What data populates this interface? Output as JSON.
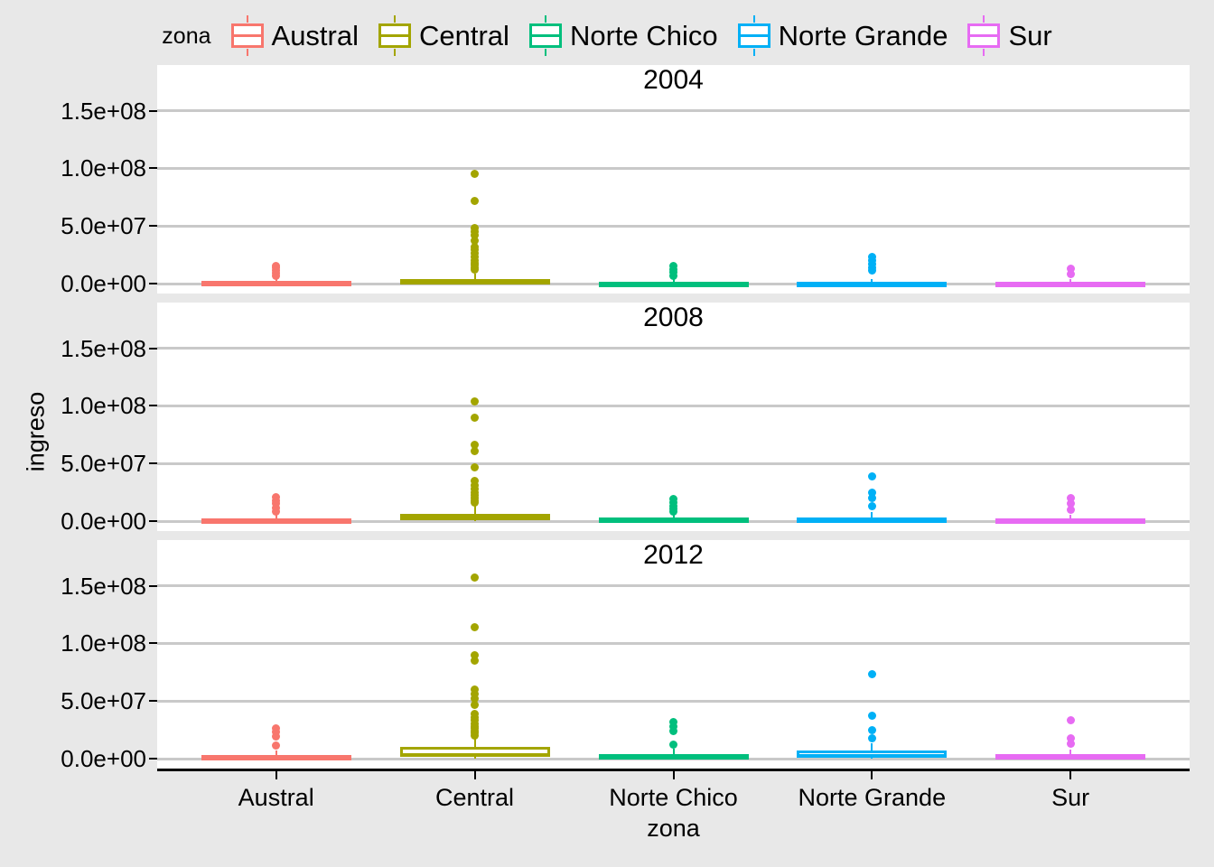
{
  "colors": {
    "outer_background": "#E8E8E8",
    "panel_background": "#FFFFFF",
    "gridline": "#C9C9C9",
    "axis": "#000000",
    "text": "#000000",
    "zones": {
      "Austral": "#F8766D",
      "Central": "#A3A500",
      "Norte Chico": "#00BF7D",
      "Norte Grande": "#00B0F6",
      "Sur": "#E76BF3"
    }
  },
  "legend": {
    "title": "zona",
    "items": [
      {
        "label": "Austral",
        "color": "#F8766D",
        "icon": "boxplot-key-icon"
      },
      {
        "label": "Central",
        "color": "#A3A500",
        "icon": "boxplot-key-icon"
      },
      {
        "label": "Norte Chico",
        "color": "#00BF7D",
        "icon": "boxplot-key-icon"
      },
      {
        "label": "Norte Grande",
        "color": "#00B0F6",
        "icon": "boxplot-key-icon"
      },
      {
        "label": "Sur",
        "color": "#E76BF3",
        "icon": "boxplot-key-icon"
      }
    ]
  },
  "axes": {
    "y_title": "ingreso",
    "x_title": "zona",
    "y_ticks": [
      {
        "label": "1.5e+08",
        "value": 150000000
      },
      {
        "label": "1.0e+08",
        "value": 100000000
      },
      {
        "label": "5.0e+07",
        "value": 50000000
      },
      {
        "label": "0.0e+00",
        "value": 0
      }
    ],
    "x_ticks": [
      "Austral",
      "Central",
      "Norte Chico",
      "Norte Grande",
      "Sur"
    ]
  },
  "chart_data": {
    "type": "boxplot",
    "title": "",
    "xlabel": "zona",
    "ylabel": "ingreso",
    "facet_variable": "year",
    "categories": [
      "Austral",
      "Central",
      "Norte Chico",
      "Norte Grande",
      "Sur"
    ],
    "ylim": [
      -8000000,
      165000000
    ],
    "grid": "horizontal-major-only",
    "legend_position": "top",
    "facets": [
      {
        "label": "2004",
        "boxes": [
          {
            "zone": "Austral",
            "color": "#F8766D",
            "whisker_low": 0,
            "q1": 300000,
            "median": 900000,
            "q3": 2000000,
            "whisker_high": 4500000,
            "outliers": [
              7000000,
              9000000,
              11000000,
              13500000,
              15500000
            ]
          },
          {
            "zone": "Central",
            "color": "#A3A500",
            "whisker_low": 0,
            "q1": 500000,
            "median": 1500000,
            "q3": 4000000,
            "whisker_high": 9000000,
            "outliers": [
              12000000,
              14000000,
              16000000,
              18000000,
              20000000,
              23000000,
              26000000,
              29000000,
              32000000,
              37000000,
              42000000,
              45000000,
              48000000,
              72000000,
              95000000
            ]
          },
          {
            "zone": "Norte Chico",
            "color": "#00BF7D",
            "whisker_low": 0,
            "q1": 250000,
            "median": 700000,
            "q3": 1700000,
            "whisker_high": 4000000,
            "outliers": [
              7000000,
              9500000,
              12000000,
              15000000
            ]
          },
          {
            "zone": "Norte Grande",
            "color": "#00B0F6",
            "whisker_low": 0,
            "q1": 300000,
            "median": 800000,
            "q3": 1900000,
            "whisker_high": 4200000,
            "outliers": [
              11000000,
              14000000,
              17000000,
              20000000,
              23000000
            ]
          },
          {
            "zone": "Sur",
            "color": "#E76BF3",
            "whisker_low": 0,
            "q1": 250000,
            "median": 650000,
            "q3": 1600000,
            "whisker_high": 3600000,
            "outliers": [
              8500000,
              13000000
            ]
          }
        ]
      },
      {
        "label": "2008",
        "boxes": [
          {
            "zone": "Austral",
            "color": "#F8766D",
            "whisker_low": 0,
            "q1": 350000,
            "median": 1000000,
            "q3": 2400000,
            "whisker_high": 5200000,
            "outliers": [
              8000000,
              11500000,
              15000000,
              18000000,
              21000000
            ]
          },
          {
            "zone": "Central",
            "color": "#A3A500",
            "whisker_low": 0,
            "q1": 700000,
            "median": 2000000,
            "q3": 6500000,
            "whisker_high": 14000000,
            "outliers": [
              16000000,
              18000000,
              20000000,
              22500000,
              25000000,
              28000000,
              31000000,
              35000000,
              47000000,
              61000000,
              66000000,
              90000000,
              104000000
            ]
          },
          {
            "zone": "Norte Chico",
            "color": "#00BF7D",
            "whisker_low": 0,
            "q1": 300000,
            "median": 900000,
            "q3": 2800000,
            "whisker_high": 6000000,
            "outliers": [
              8000000,
              10500000,
              13000000,
              16000000,
              19000000
            ]
          },
          {
            "zone": "Norte Grande",
            "color": "#00B0F6",
            "whisker_low": 0,
            "q1": 400000,
            "median": 1100000,
            "q3": 3500000,
            "whisker_high": 7500000,
            "outliers": [
              13000000,
              20000000,
              25000000,
              39000000
            ]
          },
          {
            "zone": "Sur",
            "color": "#E76BF3",
            "whisker_low": 0,
            "q1": 300000,
            "median": 850000,
            "q3": 2500000,
            "whisker_high": 5500000,
            "outliers": [
              10000000,
              15000000,
              20000000
            ]
          }
        ]
      },
      {
        "label": "2012",
        "boxes": [
          {
            "zone": "Austral",
            "color": "#F8766D",
            "whisker_low": 0,
            "q1": 450000,
            "median": 1300000,
            "q3": 3200000,
            "whisker_high": 7000000,
            "outliers": [
              11000000,
              19000000,
              23000000,
              26000000
            ]
          },
          {
            "zone": "Central",
            "color": "#A3A500",
            "whisker_low": 300000,
            "q1": 1500000,
            "median": 4000000,
            "q3": 10000000,
            "whisker_high": 18000000,
            "outliers": [
              20000000,
              22000000,
              24000000,
              26000000,
              28000000,
              30000000,
              33000000,
              36000000,
              39000000,
              47000000,
              52000000,
              56000000,
              60000000,
              85000000,
              90000000,
              114000000,
              157000000
            ]
          },
          {
            "zone": "Norte Chico",
            "color": "#00BF7D",
            "whisker_low": 0,
            "q1": 400000,
            "median": 1200000,
            "q3": 4200000,
            "whisker_high": 8500000,
            "outliers": [
              12000000,
              24000000,
              28000000,
              32000000
            ]
          },
          {
            "zone": "Norte Grande",
            "color": "#00B0F6",
            "whisker_low": 0,
            "q1": 700000,
            "median": 2200000,
            "q3": 7000000,
            "whisker_high": 13000000,
            "outliers": [
              18000000,
              25000000,
              37000000,
              73000000
            ]
          },
          {
            "zone": "Sur",
            "color": "#E76BF3",
            "whisker_low": 0,
            "q1": 400000,
            "median": 1100000,
            "q3": 3800000,
            "whisker_high": 7500000,
            "outliers": [
              13000000,
              18000000,
              33000000
            ]
          }
        ]
      }
    ]
  }
}
